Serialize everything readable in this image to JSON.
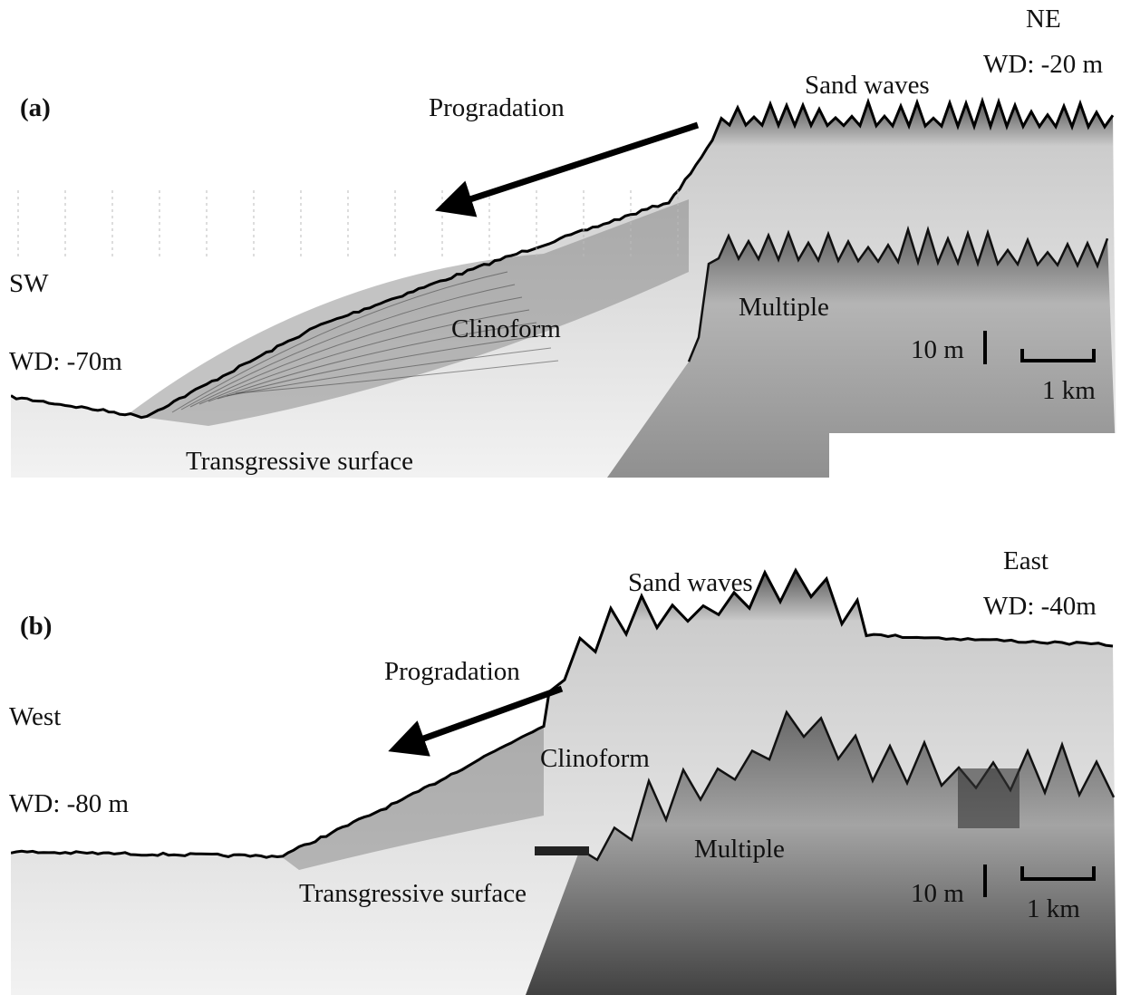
{
  "panels": [
    {
      "label": "(a)",
      "annotations": [
        "NE",
        "WD: -20 m",
        "Sand waves",
        "Progradation",
        "SW",
        "WD: -70m",
        "Clinoform",
        "Multiple",
        "10 m",
        "1 km",
        "Transgressive surface"
      ]
    },
    {
      "label": "(b)",
      "annotations": [
        "East",
        "WD: -40m",
        "Sand waves",
        "Progradation",
        "West",
        "WD: -80 m",
        "Clinoform",
        "Multiple",
        "Transgressive surface",
        "10 m",
        "1 km"
      ]
    }
  ]
}
